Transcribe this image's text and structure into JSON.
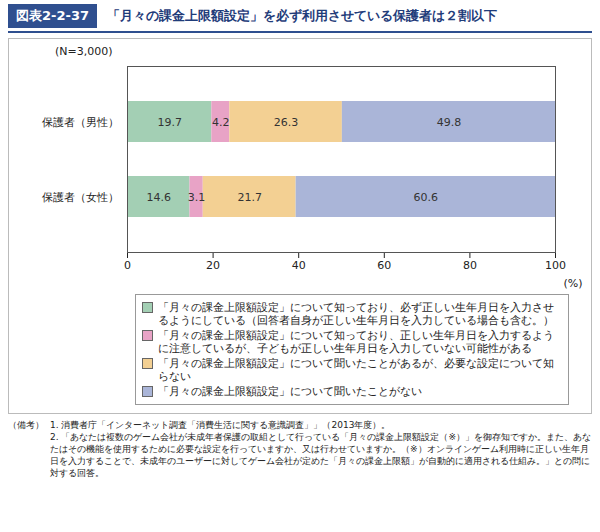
{
  "chart_data": {
    "type": "bar",
    "figure_number": "図表2-2-37",
    "title": "「月々の課金上限額設定」を必ず利用させている保護者は２割以下",
    "subtitle": "(N=3,000)",
    "orientation": "horizontal",
    "stacked": true,
    "data_labels": true,
    "grid": false,
    "legend": "bottom",
    "categories": [
      "保護者（男性）",
      "保護者（女性）"
    ],
    "series": [
      {
        "name": "「月々の課金上限額設定」について知っており、必ず正しい生年月日を入力させるようにしている（回答者自身が正しい生年月日を入力している場合も含む。）",
        "color": "#a3cfb4",
        "values": [
          19.7,
          14.6
        ]
      },
      {
        "name": "「月々の課金上限額設定」について知っており、正しい生年月日を入力するように注意しているが、子どもが正しい生年月日を入力していない可能性がある",
        "color": "#e8a3c6",
        "values": [
          4.2,
          3.1
        ]
      },
      {
        "name": "「月々の課金上限額設定」について聞いたことがあるが、必要な設定について知らない",
        "color": "#f3d093",
        "values": [
          26.3,
          21.7
        ]
      },
      {
        "name": "「月々の課金上限額設定」について聞いたことがない",
        "color": "#aab5d8",
        "values": [
          49.8,
          60.6
        ]
      }
    ],
    "xlim": [
      0,
      100
    ],
    "xticks": [
      0,
      20,
      40,
      60,
      80,
      100
    ],
    "x_label": "(%)",
    "notes_label": "（備考）",
    "notes": [
      "1. 消費者庁「インターネット調査「消費生活に関する意識調査」」（2013年度）。",
      "2. 「あなたは複数のゲーム会社が未成年者保護の取組として行っている「月々の課金上限額設定（※）」を御存知ですか。また、あなたはその機能を使用するために必要な設定を行っていますか、又は行わせていますか。（※）オンラインゲーム利用時に正しい生年月日を入力することで、未成年のユーザーに対してゲーム会社が定めた「月々の課金上限額」が自動的に適用される仕組み。」との問に対する回答。"
    ]
  }
}
